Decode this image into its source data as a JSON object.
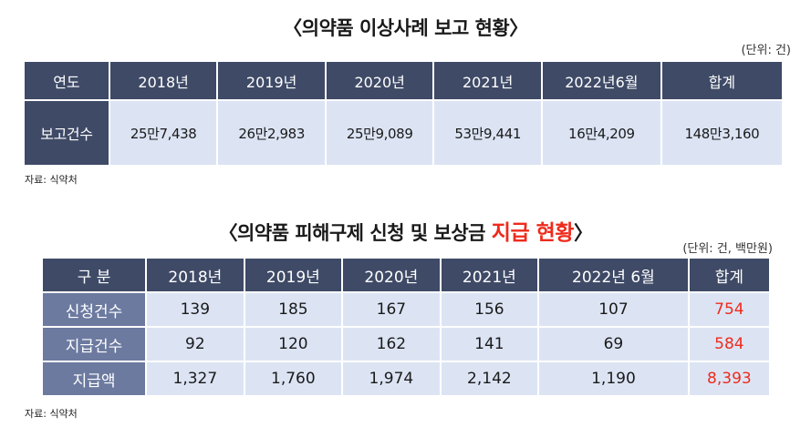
{
  "table1": {
    "title": "〈의약품 이상사례 보고 현황〉",
    "unit": "(단위: 건)",
    "headers": [
      "연도",
      "2018년",
      "2019년",
      "2020년",
      "2021년",
      "2022년6월",
      "합계"
    ],
    "row": {
      "label": "보고건수",
      "values": [
        "25만7,438",
        "26만2,983",
        "25만9,089",
        "53만9,441",
        "16만4,209",
        "148만3,160"
      ]
    },
    "source": "자료: 식약처"
  },
  "table2": {
    "title_prefix": "〈의약품 피해구제 신청 및 보상금 ",
    "title_highlight": "지급 현황",
    "title_suffix": "〉",
    "unit": "(단위: 건, 백만원)",
    "headers": [
      "구 분",
      "2018년",
      "2019년",
      "2020년",
      "2021년",
      "2022년 6월",
      "합계"
    ],
    "rows": [
      {
        "label": "신청건수",
        "values": [
          "139",
          "185",
          "167",
          "156",
          "107"
        ],
        "total": "754"
      },
      {
        "label": "지급건수",
        "values": [
          "92",
          "120",
          "162",
          "141",
          "69"
        ],
        "total": "584"
      },
      {
        "label": "지급액",
        "values": [
          "1,327",
          "1,760",
          "1,974",
          "2,142",
          "1,190"
        ],
        "total": "8,393"
      }
    ],
    "source": "자료: 식약처"
  },
  "colors": {
    "header_bg": "#3e4a66",
    "rowhead_bg": "#6c7aa0",
    "cell_bg": "#dce4f4",
    "highlight": "#ee2b1c"
  }
}
